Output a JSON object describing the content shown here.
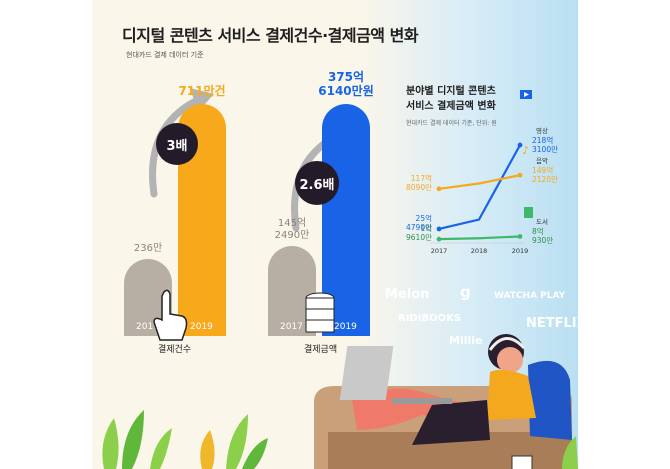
{
  "title": "디지털 콘텐츠 서비스 결제건수·결제금액 변화",
  "subtitle": "현대카드 결제 데이터 기준",
  "colors": {
    "orange": "#f7a81b",
    "blue": "#1964e6",
    "gray": "#b7afa3",
    "dark": "#231a2a",
    "green": "#3fb86a"
  },
  "chart_data": [
    {
      "type": "bar",
      "title": "결제건수",
      "categories": [
        "2017",
        "2019"
      ],
      "values": [
        236,
        711
      ],
      "value_labels": [
        "236만",
        "711만건"
      ],
      "growth_label": "3배",
      "xlabel": "결제건수"
    },
    {
      "type": "bar",
      "title": "결제금액",
      "categories": [
        "2017",
        "2019"
      ],
      "values": [
        145.249,
        375.614
      ],
      "value_labels": [
        "145억\n2490만",
        "375억\n6140만원"
      ],
      "growth_label": "2.6배",
      "xlabel": "결제금액"
    },
    {
      "type": "line",
      "title": "분야별 디지털 콘텐츠\n서비스 결제금액 변화",
      "subtitle": "현대카드 결제 데이터 기준, 단위: 원",
      "x": [
        "2017",
        "2018",
        "2019"
      ],
      "series": [
        {
          "name": "영상",
          "values": [
            25.479,
            47,
            218.31
          ],
          "start_label": "25억\n4790만",
          "end_label": "218억\n3100만"
        },
        {
          "name": "음악",
          "values": [
            117.809,
            130,
            149.212
          ],
          "start_label": "117억\n8090만",
          "end_label": "149억\n2120만"
        },
        {
          "name": "도서",
          "values": [
            1.961,
            4,
            8.093
          ],
          "start_label": "1억\n9610만",
          "end_label": "8억\n930만"
        }
      ]
    }
  ],
  "brands": [
    "Melon",
    "g",
    "WATCHA PLAY",
    "RIDIBOOKS",
    "NETFLIX",
    "Millie"
  ]
}
